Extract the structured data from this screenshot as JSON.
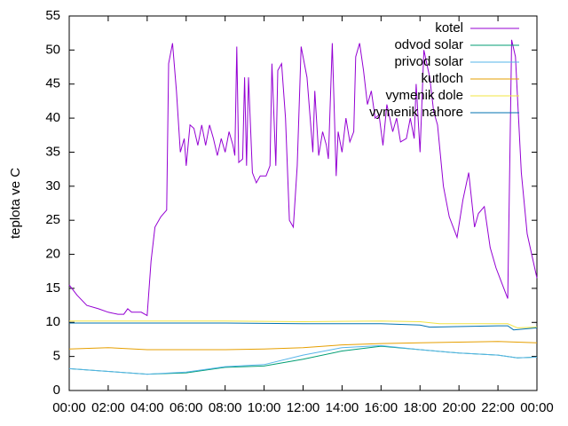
{
  "chart_data": {
    "type": "line",
    "y_label": "teplota ve C",
    "xlim": [
      0,
      24
    ],
    "xticks": [
      {
        "value": 0,
        "label": "00:00"
      },
      {
        "value": 2,
        "label": "02:00"
      },
      {
        "value": 4,
        "label": "04:00"
      },
      {
        "value": 6,
        "label": "06:00"
      },
      {
        "value": 8,
        "label": "08:00"
      },
      {
        "value": 10,
        "label": "10:00"
      },
      {
        "value": 12,
        "label": "12:00"
      },
      {
        "value": 14,
        "label": "14:00"
      },
      {
        "value": 16,
        "label": "16:00"
      },
      {
        "value": 18,
        "label": "18:00"
      },
      {
        "value": 20,
        "label": "20:00"
      },
      {
        "value": 22,
        "label": "22:00"
      },
      {
        "value": 24,
        "label": "00:00"
      }
    ],
    "ylim": [
      0,
      55
    ],
    "yticks": [
      0,
      5,
      10,
      15,
      20,
      25,
      30,
      35,
      40,
      45,
      50,
      55
    ],
    "legend": "top-right",
    "series": [
      {
        "name": "kotel",
        "color": "#9400d3",
        "x": [
          0,
          0.4,
          0.9,
          1.5,
          2,
          2.5,
          2.8,
          3,
          3.2,
          3.7,
          4,
          4.2,
          4.4,
          4.7,
          5,
          5.1,
          5.3,
          5.5,
          5.7,
          5.9,
          6,
          6.2,
          6.4,
          6.6,
          6.8,
          7,
          7.2,
          7.4,
          7.6,
          7.8,
          8,
          8.2,
          8.4,
          8.5,
          8.6,
          8.7,
          8.9,
          9,
          9.1,
          9.2,
          9.4,
          9.6,
          9.8,
          10.1,
          10.3,
          10.4,
          10.6,
          10.7,
          10.9,
          11.1,
          11.3,
          11.5,
          11.7,
          11.9,
          12.2,
          12.5,
          12.6,
          12.8,
          13,
          13.2,
          13.3,
          13.5,
          13.7,
          13.8,
          14,
          14.2,
          14.4,
          14.6,
          14.7,
          14.9,
          15.1,
          15.3,
          15.5,
          15.7,
          15.9,
          16.1,
          16.3,
          16.6,
          16.8,
          17,
          17.3,
          17.5,
          17.7,
          17.8,
          18,
          18.2,
          18.5,
          18.7,
          18.9,
          19.2,
          19.5,
          19.9,
          20.2,
          20.5,
          20.8,
          21,
          21.3,
          21.6,
          21.9,
          22.1,
          22.5,
          22.7,
          22.9,
          23.2,
          23.5,
          24
        ],
        "values": [
          15.5,
          14,
          12.5,
          12,
          11.5,
          11.2,
          11.2,
          12,
          11.5,
          11.5,
          11,
          19,
          24,
          25.5,
          26.5,
          48,
          51,
          44,
          35,
          37,
          33,
          39,
          38.5,
          36,
          39,
          36,
          39,
          37,
          34.5,
          37,
          35,
          38,
          36,
          34.5,
          50.5,
          33.5,
          34,
          46,
          33,
          46,
          32,
          30.5,
          31.5,
          31.5,
          33,
          48,
          33,
          47,
          48,
          40,
          25,
          24,
          33,
          50.5,
          46,
          35,
          44,
          34.5,
          38,
          36,
          34,
          51,
          31.5,
          38,
          35,
          40,
          36.5,
          38,
          49,
          51,
          47,
          42,
          44,
          40,
          40.5,
          36,
          42,
          38,
          40,
          36.5,
          37,
          40,
          37,
          45,
          35,
          50,
          46,
          41,
          39,
          30,
          25.5,
          22.5,
          28,
          32,
          24,
          26,
          27,
          21,
          18,
          16.5,
          13.5,
          51.5,
          49,
          32,
          23,
          16.5
        ]
      },
      {
        "name": "odvod solar",
        "color": "#009e73",
        "x": [
          0,
          2,
          4,
          6,
          8,
          10,
          12,
          14,
          16,
          18,
          20,
          22,
          23,
          24
        ],
        "values": [
          3.2,
          2.8,
          2.4,
          2.6,
          3.4,
          3.6,
          4.6,
          5.8,
          6.5,
          6.0,
          5.5,
          5.2,
          4.8,
          4.9
        ]
      },
      {
        "name": "privod solar",
        "color": "#56b4e9",
        "x": [
          0,
          2,
          4,
          6,
          8,
          10,
          12,
          14,
          16,
          18,
          20,
          22,
          23,
          24
        ],
        "values": [
          3.2,
          2.8,
          2.4,
          2.7,
          3.5,
          3.8,
          5.2,
          6.3,
          6.6,
          6.0,
          5.5,
          5.2,
          4.8,
          4.9
        ]
      },
      {
        "name": "kutloch",
        "color": "#e69f00",
        "x": [
          0,
          2,
          4,
          6,
          8,
          10,
          12,
          14,
          16,
          18,
          20,
          22,
          24
        ],
        "values": [
          6.1,
          6.3,
          6.0,
          6.0,
          6.0,
          6.1,
          6.3,
          6.7,
          6.9,
          7.0,
          7.1,
          7.2,
          7.0
        ]
      },
      {
        "name": "vymenik dole",
        "color": "#f0e442",
        "x": [
          0,
          4,
          8,
          12,
          16,
          18,
          19,
          22,
          22.5,
          23,
          24
        ],
        "values": [
          10.2,
          10.2,
          10.2,
          10.1,
          10.2,
          10.1,
          9.8,
          9.8,
          9.8,
          9.2,
          9.3
        ]
      },
      {
        "name": "vymenik nahore",
        "color": "#0072b2",
        "x": [
          0,
          8,
          12,
          16,
          18,
          18.5,
          22,
          22.5,
          22.8,
          24
        ],
        "values": [
          9.9,
          9.9,
          9.8,
          9.8,
          9.6,
          9.3,
          9.5,
          9.5,
          8.9,
          9.2
        ]
      }
    ]
  }
}
